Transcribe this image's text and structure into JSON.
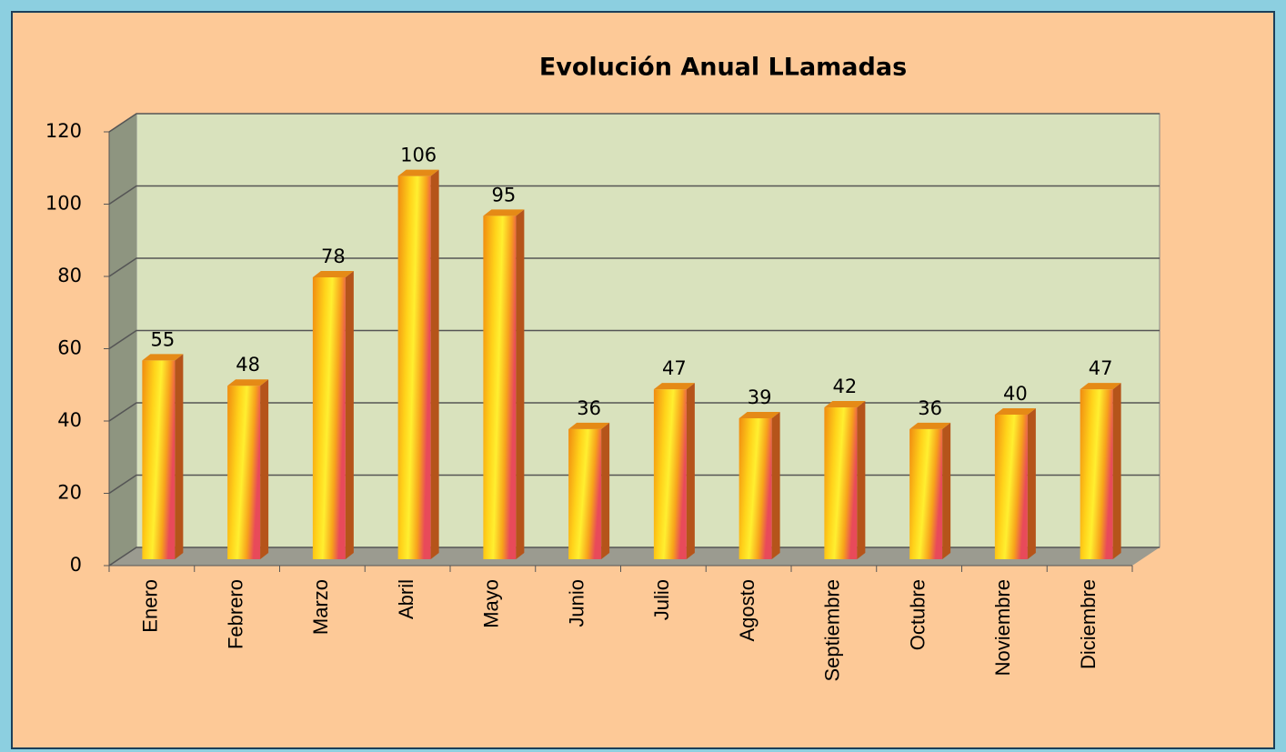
{
  "chart_data": {
    "type": "bar",
    "title": "Evolución Anual LLamadas",
    "categories": [
      "Enero",
      "Febrero",
      "Marzo",
      "Abril",
      "Mayo",
      "Junio",
      "Julio",
      "Agosto",
      "Septiembre",
      "Octubre",
      "Noviembre",
      "Diciembre"
    ],
    "values": [
      55,
      48,
      78,
      106,
      95,
      36,
      47,
      39,
      42,
      36,
      40,
      47
    ],
    "color": "#f7a21b",
    "ylim": [
      0,
      120
    ],
    "yticks": [
      0,
      20,
      40,
      60,
      80,
      100,
      120
    ],
    "grid": true
  }
}
